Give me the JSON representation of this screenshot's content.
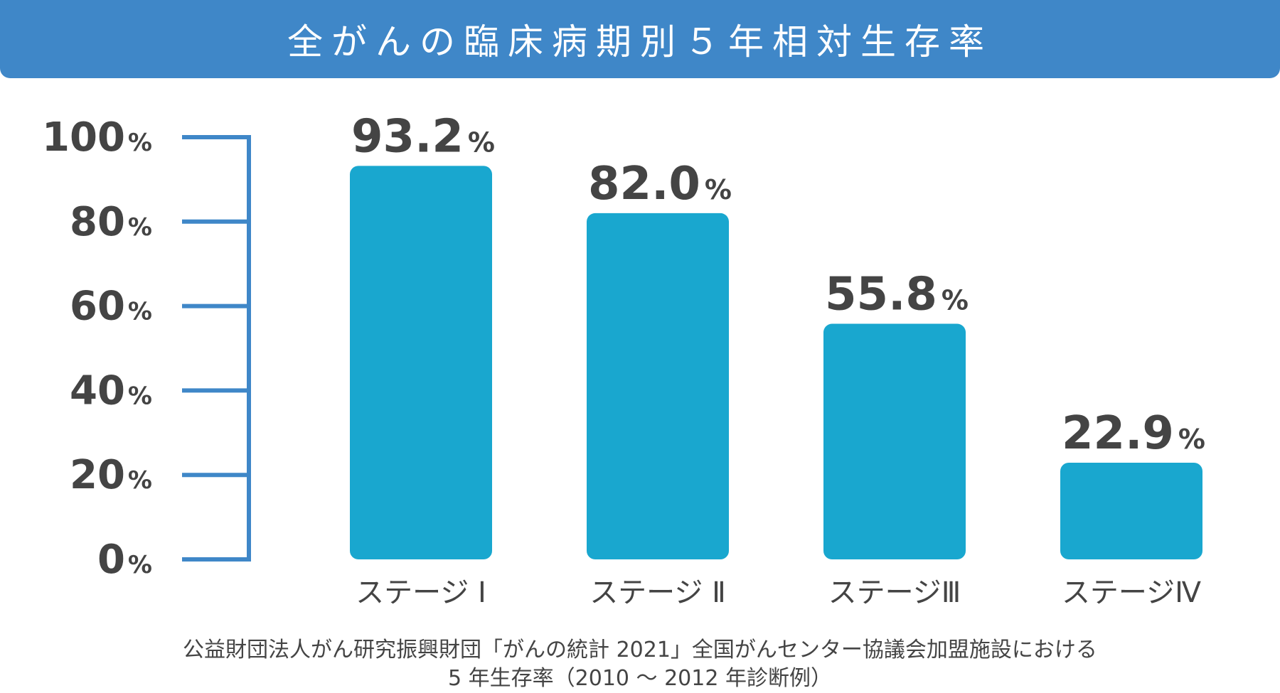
{
  "page": {
    "title": "全がんの臨床病期別５年相対生存率",
    "footnote_line1": "公益財団法人がん研究振興財団「がんの統計 2021」全国がんセンター協議会加盟施設における",
    "footnote_line2": "5 年生存率（2010 〜 2012 年診断例）"
  },
  "colors": {
    "title_bar": "#3f87c8",
    "bar": "#19a7cf",
    "axis": "#3f87c8",
    "text": "#444444"
  },
  "chart_data": {
    "type": "bar",
    "title": "全がんの臨床病期別５年相対生存率",
    "categories": [
      "ステージ Ⅰ",
      "ステージ Ⅱ",
      "ステージⅢ",
      "ステージⅣ"
    ],
    "values": [
      93.2,
      82.0,
      55.8,
      22.9
    ],
    "value_labels": [
      "93.2",
      "82.0",
      "55.8",
      "22.9"
    ],
    "value_unit": "%",
    "y_ticks": [
      "0",
      "20",
      "40",
      "60",
      "80",
      "100"
    ],
    "y_tick_unit": "%",
    "ylim": [
      0,
      100
    ],
    "xlabel": "",
    "ylabel": "",
    "grid": false,
    "legend": "none"
  }
}
